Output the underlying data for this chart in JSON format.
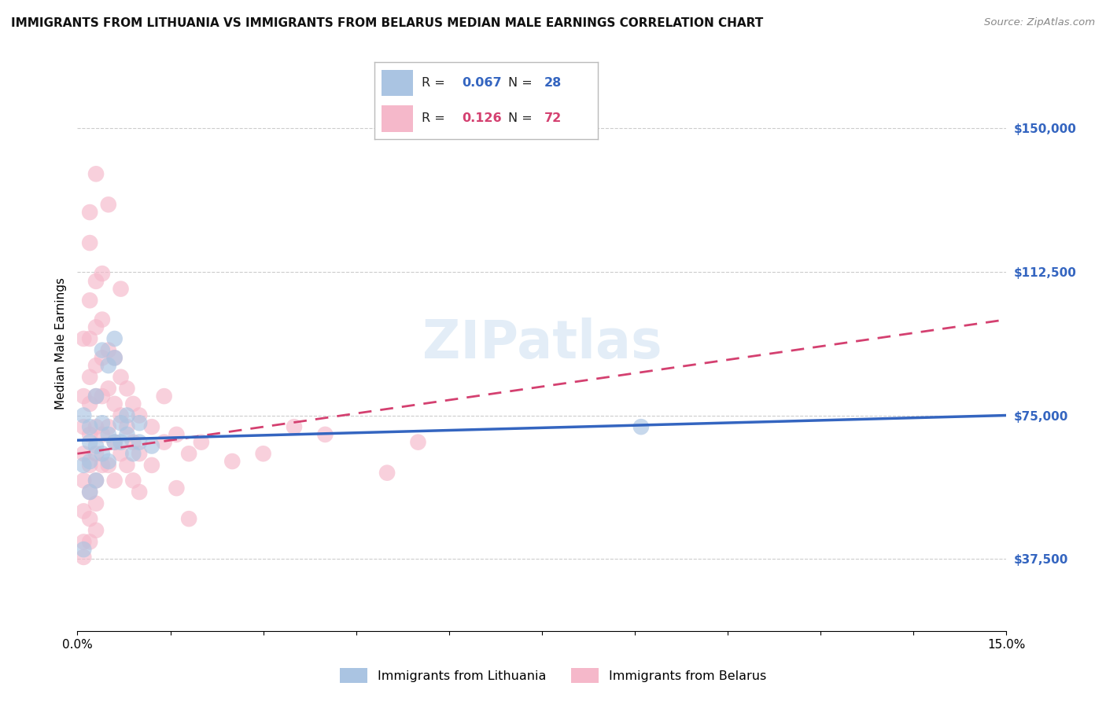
{
  "title": "IMMIGRANTS FROM LITHUANIA VS IMMIGRANTS FROM BELARUS MEDIAN MALE EARNINGS CORRELATION CHART",
  "source": "Source: ZipAtlas.com",
  "ylabel": "Median Male Earnings",
  "xlim": [
    0,
    0.15
  ],
  "ylim": [
    18750,
    168750
  ],
  "yticks": [
    37500,
    75000,
    112500,
    150000
  ],
  "ytick_labels": [
    "$37,500",
    "$75,000",
    "$112,500",
    "$150,000"
  ],
  "xticks": [
    0.0,
    0.015,
    0.03,
    0.045,
    0.06,
    0.075,
    0.09,
    0.105,
    0.12,
    0.135,
    0.15
  ],
  "xtick_labels": [
    "0.0%",
    "",
    "",
    "",
    "",
    "",
    "",
    "",
    "",
    "",
    "15.0%"
  ],
  "color_lithuania": "#aac4e2",
  "color_belarus": "#f5b8ca",
  "line_color_lithuania": "#3465c0",
  "line_color_belarus": "#d44070",
  "background_color": "#ffffff",
  "scatter_lithuania": [
    [
      0.001,
      75000
    ],
    [
      0.002,
      68000
    ],
    [
      0.002,
      72000
    ],
    [
      0.002,
      63000
    ],
    [
      0.003,
      80000
    ],
    [
      0.003,
      67000
    ],
    [
      0.003,
      58000
    ],
    [
      0.004,
      73000
    ],
    [
      0.004,
      65000
    ],
    [
      0.004,
      92000
    ],
    [
      0.005,
      70000
    ],
    [
      0.005,
      63000
    ],
    [
      0.005,
      88000
    ],
    [
      0.006,
      68000
    ],
    [
      0.006,
      90000
    ],
    [
      0.006,
      95000
    ],
    [
      0.007,
      73000
    ],
    [
      0.007,
      68000
    ],
    [
      0.008,
      75000
    ],
    [
      0.008,
      70000
    ],
    [
      0.009,
      65000
    ],
    [
      0.01,
      73000
    ],
    [
      0.01,
      68000
    ],
    [
      0.012,
      67000
    ],
    [
      0.001,
      62000
    ],
    [
      0.002,
      55000
    ],
    [
      0.091,
      72000
    ],
    [
      0.001,
      40000
    ]
  ],
  "scatter_belarus": [
    [
      0.001,
      95000
    ],
    [
      0.001,
      80000
    ],
    [
      0.001,
      72000
    ],
    [
      0.001,
      65000
    ],
    [
      0.001,
      58000
    ],
    [
      0.001,
      50000
    ],
    [
      0.001,
      42000
    ],
    [
      0.001,
      38000
    ],
    [
      0.002,
      120000
    ],
    [
      0.002,
      105000
    ],
    [
      0.002,
      95000
    ],
    [
      0.002,
      85000
    ],
    [
      0.002,
      78000
    ],
    [
      0.002,
      70000
    ],
    [
      0.002,
      62000
    ],
    [
      0.002,
      55000
    ],
    [
      0.002,
      48000
    ],
    [
      0.002,
      42000
    ],
    [
      0.003,
      110000
    ],
    [
      0.003,
      98000
    ],
    [
      0.003,
      88000
    ],
    [
      0.003,
      80000
    ],
    [
      0.003,
      72000
    ],
    [
      0.003,
      65000
    ],
    [
      0.003,
      58000
    ],
    [
      0.003,
      52000
    ],
    [
      0.003,
      45000
    ],
    [
      0.004,
      100000
    ],
    [
      0.004,
      90000
    ],
    [
      0.004,
      80000
    ],
    [
      0.004,
      70000
    ],
    [
      0.004,
      62000
    ],
    [
      0.005,
      130000
    ],
    [
      0.005,
      92000
    ],
    [
      0.005,
      82000
    ],
    [
      0.005,
      72000
    ],
    [
      0.005,
      62000
    ],
    [
      0.006,
      90000
    ],
    [
      0.006,
      78000
    ],
    [
      0.006,
      68000
    ],
    [
      0.006,
      58000
    ],
    [
      0.007,
      85000
    ],
    [
      0.007,
      75000
    ],
    [
      0.007,
      65000
    ],
    [
      0.008,
      82000
    ],
    [
      0.008,
      72000
    ],
    [
      0.008,
      62000
    ],
    [
      0.009,
      78000
    ],
    [
      0.009,
      68000
    ],
    [
      0.009,
      58000
    ],
    [
      0.01,
      75000
    ],
    [
      0.01,
      65000
    ],
    [
      0.01,
      55000
    ],
    [
      0.012,
      72000
    ],
    [
      0.012,
      62000
    ],
    [
      0.014,
      68000
    ],
    [
      0.016,
      70000
    ],
    [
      0.018,
      65000
    ],
    [
      0.02,
      68000
    ],
    [
      0.025,
      63000
    ],
    [
      0.03,
      65000
    ],
    [
      0.04,
      70000
    ],
    [
      0.05,
      60000
    ],
    [
      0.055,
      68000
    ],
    [
      0.007,
      108000
    ],
    [
      0.004,
      112000
    ],
    [
      0.003,
      138000
    ],
    [
      0.002,
      128000
    ],
    [
      0.014,
      80000
    ],
    [
      0.035,
      72000
    ],
    [
      0.016,
      56000
    ],
    [
      0.018,
      48000
    ]
  ],
  "lit_line_x": [
    0.0,
    0.15
  ],
  "lit_line_y": [
    68500,
    75000
  ],
  "bel_line_x": [
    0.0,
    0.15
  ],
  "bel_line_y": [
    65000,
    100000
  ],
  "title_fontsize": 11,
  "tick_fontsize": 11,
  "watermark_color": "#c8ddf0",
  "watermark_alpha": 0.5
}
